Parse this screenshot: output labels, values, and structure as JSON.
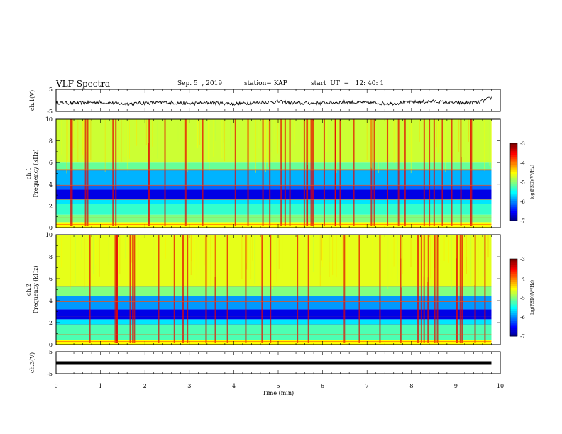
{
  "header": {
    "title": "VLF Spectra",
    "date": "Sep. 5  , 2019",
    "station": "station= KAP",
    "start": "start  UT  =   12: 40: 1"
  },
  "chart_data": [
    {
      "type": "line",
      "panel": "ch1-waveform",
      "ylabel": "ch.1(V)",
      "ylim": [
        -5,
        5
      ],
      "yticks": [
        "5",
        "-5"
      ],
      "xlim": [
        0,
        10
      ],
      "note_values": "noisy waveform approx 0 to -2 V across 0-9.8 min",
      "x": [
        0,
        0.5,
        1.0,
        1.5,
        2.0,
        2.5,
        3.0,
        3.5,
        4.0,
        4.5,
        5.0,
        5.5,
        6.0,
        6.5,
        7.0,
        7.5,
        8.0,
        8.5,
        9.0,
        9.5,
        9.8
      ],
      "y": [
        -1.0,
        -1.3,
        -0.8,
        -1.6,
        -1.2,
        -0.9,
        -1.4,
        -1.1,
        -1.5,
        -1.0,
        -0.6,
        -1.3,
        -1.2,
        -0.8,
        -1.1,
        -1.4,
        -0.9,
        -0.5,
        -1.2,
        -1.0,
        1.2
      ]
    },
    {
      "type": "heatmap",
      "panel": "ch1-spectrogram",
      "ylabel": "ch.1\nFrequency  (kHz)",
      "ylim": [
        0,
        10
      ],
      "yticks": [
        "0",
        "2",
        "4",
        "6",
        "8",
        "10"
      ],
      "xlim": [
        0,
        10
      ],
      "colorbar": {
        "label": "log(PSD)(V²/Hz)",
        "range": [
          -7,
          -3
        ],
        "ticks": [
          "-3",
          "-4",
          "-5",
          "-6",
          "-7"
        ]
      },
      "bands_khz": [
        {
          "from": 0.0,
          "to": 0.5,
          "level": -4.5
        },
        {
          "from": 0.5,
          "to": 1.2,
          "level": -5.0
        },
        {
          "from": 1.2,
          "to": 2.2,
          "level": -5.3
        },
        {
          "from": 2.2,
          "to": 2.6,
          "level": -5.6
        },
        {
          "from": 2.6,
          "to": 3.5,
          "level": -6.6
        },
        {
          "from": 3.5,
          "to": 3.9,
          "level": -6.1
        },
        {
          "from": 3.9,
          "to": 5.3,
          "level": -5.8
        },
        {
          "from": 5.3,
          "to": 6.0,
          "level": -5.1
        },
        {
          "from": 6.0,
          "to": 10.0,
          "level": -4.7
        }
      ]
    },
    {
      "type": "heatmap",
      "panel": "ch2-spectrogram",
      "ylabel": "ch.2\nFrequency  (kHz)",
      "ylim": [
        0,
        10
      ],
      "yticks": [
        "0",
        "2",
        "4",
        "6",
        "8",
        "10"
      ],
      "xlim": [
        0,
        10
      ],
      "colorbar": {
        "label": "log(PSD)(V²/Hz)",
        "range": [
          -7,
          -3
        ],
        "ticks": [
          "-3",
          "-4",
          "-5",
          "-6",
          "-7"
        ]
      },
      "bands_khz": [
        {
          "from": 0.0,
          "to": 0.4,
          "level": -4.5
        },
        {
          "from": 0.4,
          "to": 1.8,
          "level": -5.2
        },
        {
          "from": 1.8,
          "to": 2.3,
          "level": -5.6
        },
        {
          "from": 2.3,
          "to": 3.2,
          "level": -6.6
        },
        {
          "from": 3.2,
          "to": 4.4,
          "level": -5.9
        },
        {
          "from": 4.4,
          "to": 5.3,
          "level": -5.0
        },
        {
          "from": 5.3,
          "to": 10.0,
          "level": -4.6
        }
      ]
    },
    {
      "type": "line",
      "panel": "ch3-waveform",
      "ylabel": "ch.3(V)",
      "ylim": [
        -5,
        5
      ],
      "yticks": [
        "5",
        "-5"
      ],
      "xlim": [
        0,
        10
      ],
      "x": [
        0,
        9.8
      ],
      "y": [
        0,
        0
      ],
      "xlabel": "Time  (min)",
      "xticks": [
        "0",
        "1",
        "2",
        "3",
        "4",
        "5",
        "6",
        "7",
        "8",
        "9",
        "10"
      ]
    }
  ]
}
